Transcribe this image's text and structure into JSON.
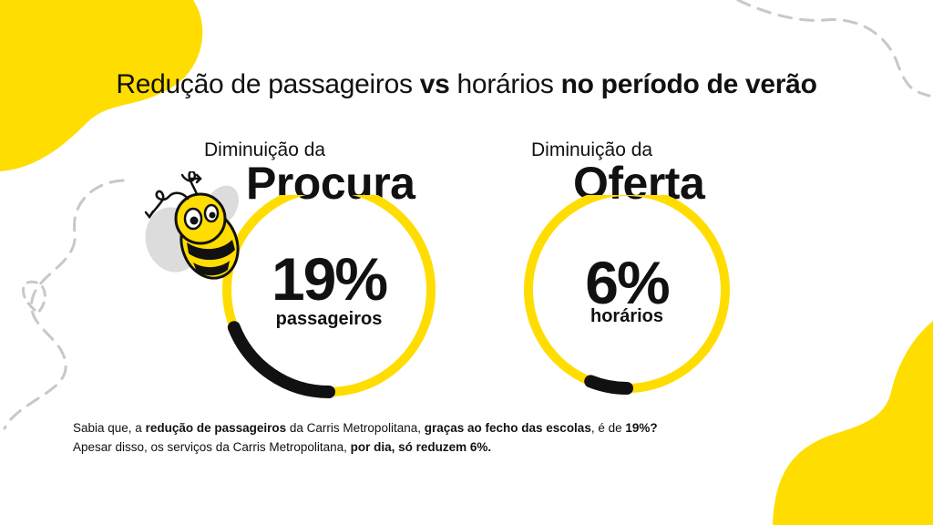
{
  "colors": {
    "accent": "#FFDD00",
    "dark": "#111111",
    "wing": "#DCDCDC",
    "dash": "#C8C8C8"
  },
  "title": {
    "part1": "Redução de passageiros ",
    "part2": "vs",
    "part3": " horários ",
    "part4": "no período de verão"
  },
  "procura": {
    "subtitle": "Diminuição da",
    "word": "Procura",
    "value": "19%",
    "unit": "passageiros",
    "fraction": 0.19
  },
  "oferta": {
    "subtitle": "Diminuição da",
    "word": "Oferta",
    "value": "6%",
    "unit": "horários",
    "fraction": 0.06
  },
  "note": {
    "l1a": "Sabia que, a ",
    "l1b": "redução de passageiros",
    "l1c": " da Carris Metropolitana, ",
    "l1d": "graças ao fecho das escolas",
    "l1e": ", é de ",
    "l1f": "19%?",
    "l2a": "Apesar disso, os serviços da Carris Metropolitana, ",
    "l2b": "por dia, só reduzem 6%."
  },
  "mascot": {
    "icon": "bee-mascot-icon"
  }
}
